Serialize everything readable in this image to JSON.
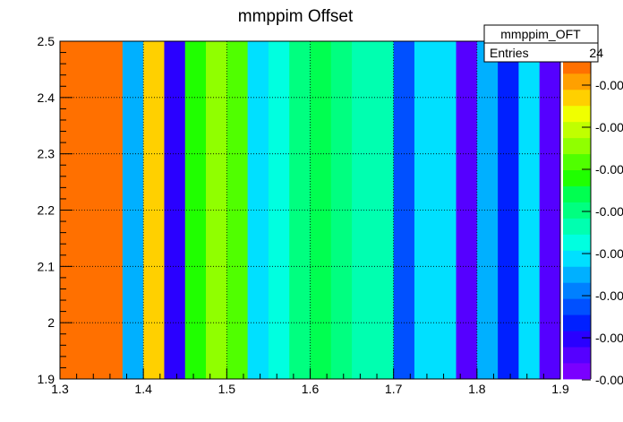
{
  "chart_data": {
    "type": "heatmap",
    "title": "mmppim Offset",
    "xlabel": "",
    "ylabel": "",
    "xlim": [
      1.3,
      1.9
    ],
    "ylim": [
      1.9,
      2.5
    ],
    "grid": true,
    "x_ticks": [
      "1.3",
      "1.4",
      "1.5",
      "1.6",
      "1.7",
      "1.8",
      "1.9"
    ],
    "y_ticks": [
      "1.9",
      "2",
      "2.1",
      "2.2",
      "2.3",
      "2.4",
      "2.5"
    ],
    "x_edges": [
      1.3,
      1.375,
      1.4,
      1.425,
      1.45,
      1.475,
      1.5,
      1.525,
      1.55,
      1.575,
      1.6,
      1.625,
      1.65,
      1.675,
      1.7,
      1.725,
      1.75,
      1.775,
      1.8,
      1.825,
      1.85,
      1.875,
      1.9
    ],
    "bin_levels": [
      19,
      6,
      17,
      2,
      12,
      14,
      13,
      7,
      8,
      10,
      11,
      10,
      9,
      9,
      4,
      7,
      7,
      1,
      6,
      3,
      7,
      1
    ],
    "palette": [
      "#7a00ff",
      "#5500ff",
      "#2a00ff",
      "#0020ff",
      "#0050ff",
      "#0080ff",
      "#00b0ff",
      "#00e0ff",
      "#00ffe0",
      "#00ffb0",
      "#00ff80",
      "#00ff50",
      "#20ff00",
      "#50ff00",
      "#90ff00",
      "#c0ff00",
      "#f0ff00",
      "#ffd000",
      "#ffa000",
      "#ff7000",
      "#ff4000"
    ],
    "palette_labels": [
      "-0.00",
      "-0.00",
      "-0.00",
      "-0.00",
      "-0.00",
      "-0.00",
      "-0.00",
      "-0.00"
    ],
    "stats_box": {
      "name": "mmppim_OFT",
      "entries_label": "Entries",
      "entries_value": "24"
    }
  }
}
